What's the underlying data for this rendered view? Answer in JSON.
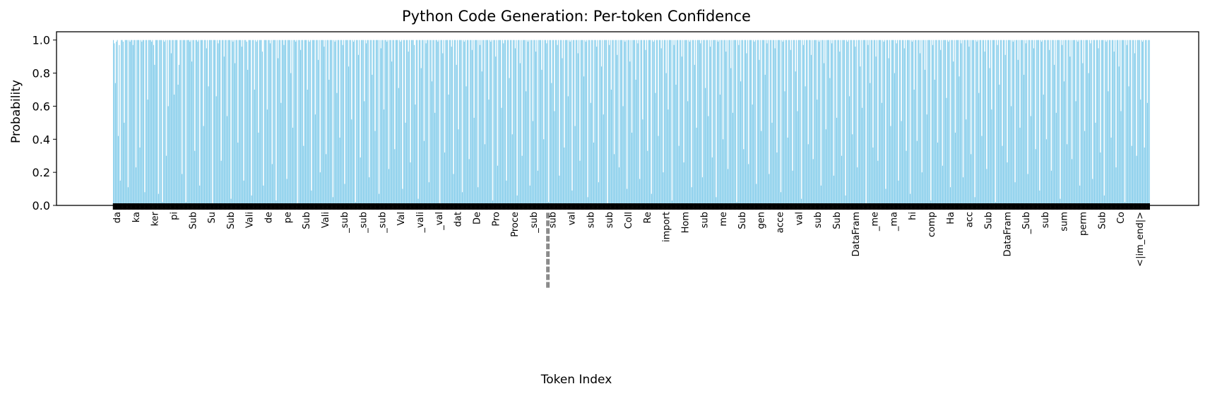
{
  "chart_data": {
    "type": "bar",
    "title": "Python Code Generation: Per-token Confidence",
    "xlabel": "Token Index",
    "ylabel": "Probability",
    "ylim": [
      0,
      1.05
    ],
    "yticks": [
      "0.0",
      "0.2",
      "0.4",
      "0.6",
      "0.8",
      "1.0"
    ],
    "bar_color": "#87CEEB",
    "grid": false,
    "x_tick_labels_visible": [
      "da",
      "ka",
      "ker",
      "pi",
      "Sub",
      "Su",
      "Sub",
      "Vali",
      "de",
      "pe",
      "Sub",
      "Vali",
      "_sub",
      "_sub",
      "_sub",
      "Val",
      "_vali",
      "_val",
      "dat",
      "De",
      "Pro",
      "Proce",
      "_sub",
      "sub",
      "val",
      "sub",
      "sub",
      "Coll",
      "Re",
      "import",
      "Hom",
      "sub",
      "me",
      "Sub",
      "gen",
      "acce",
      "val",
      "sub",
      "Sub",
      "DataFram",
      "_me",
      "_ma",
      "hi",
      "comp",
      "Ha",
      "acc",
      "Sub",
      "DataFram",
      "_Sub",
      "sub",
      "sum",
      "perm",
      "Sub",
      "Co",
      "<|im_end|>",
      "=========="
    ],
    "values": [
      1.0,
      0.98,
      0.74,
      0.99,
      1.0,
      0.42,
      0.97,
      0.15,
      1.0,
      1.0,
      0.99,
      0.5,
      1.0,
      1.0,
      1.0,
      0.11,
      1.0,
      0.99,
      1.0,
      1.0,
      0.97,
      1.0,
      1.0,
      0.23,
      1.0,
      1.0,
      1.0,
      0.35,
      1.0,
      0.99,
      1.0,
      1.0,
      0.08,
      1.0,
      1.0,
      0.64,
      1.0,
      1.0,
      1.0,
      0.99,
      1.0,
      0.97,
      0.85,
      1.0,
      1.0,
      1.0,
      0.07,
      1.0,
      1.0,
      1.0,
      0.02,
      1.0,
      0.99,
      1.0,
      0.3,
      1.0,
      0.6,
      1.0,
      1.0,
      0.92,
      1.0,
      1.0,
      0.67,
      1.0,
      1.0,
      1.0,
      0.73,
      0.85,
      1.0,
      1.0,
      0.19,
      1.0,
      1.0,
      1.0,
      0.02,
      1.0,
      1.0,
      1.0,
      0.99,
      1.0,
      0.87,
      1.0,
      1.0,
      0.33,
      1.0,
      1.0,
      0.99,
      1.0,
      0.12,
      1.0,
      1.0,
      1.0,
      0.48,
      1.0,
      1.0,
      0.95,
      1.0,
      0.72,
      1.0,
      1.0,
      1.0,
      0.01,
      1.0,
      1.0,
      1.0,
      0.66,
      1.0,
      0.98,
      1.0,
      1.0,
      0.27,
      1.0,
      1.0,
      0.9,
      1.0,
      1.0,
      0.54,
      1.0,
      1.0,
      1.0,
      0.04,
      1.0,
      0.99,
      1.0,
      0.86,
      1.0,
      1.0,
      0.38,
      1.0,
      1.0,
      1.0,
      0.96,
      1.0,
      0.15,
      1.0,
      1.0,
      0.99,
      0.82,
      1.0,
      1.0,
      1.0,
      0.06,
      1.0,
      1.0,
      0.7,
      1.0,
      0.99,
      1.0,
      0.44,
      1.0,
      1.0,
      1.0,
      0.93,
      0.12,
      1.0,
      1.0,
      1.0,
      0.58,
      1.0,
      1.0,
      0.98,
      1.0,
      0.25,
      1.0,
      1.0,
      1.0,
      0.03,
      1.0,
      0.89,
      1.0,
      1.0,
      0.62,
      1.0,
      1.0,
      0.97,
      1.0,
      1.0,
      0.16,
      1.0,
      1.0,
      1.0,
      0.8,
      1.0,
      0.47,
      1.0,
      1.0,
      0.99,
      1.0,
      0.01,
      1.0,
      1.0,
      0.94,
      1.0,
      1.0,
      0.36,
      1.0,
      1.0,
      1.0,
      0.7,
      1.0,
      0.99,
      1.0,
      0.09,
      1.0,
      1.0,
      1.0,
      0.55,
      1.0,
      1.0,
      0.88,
      1.0,
      0.2,
      1.0,
      1.0,
      1.0,
      0.96,
      1.0,
      0.31,
      1.0,
      1.0,
      0.76,
      1.0,
      1.0,
      1.0,
      0.05,
      1.0,
      0.99,
      1.0,
      0.68,
      1.0,
      1.0,
      0.41,
      1.0,
      1.0,
      0.97,
      1.0,
      0.13,
      1.0,
      1.0,
      1.0,
      0.84,
      1.0,
      1.0,
      0.52,
      1.0,
      0.99,
      1.0,
      0.02,
      1.0,
      1.0,
      0.91,
      1.0,
      0.29,
      1.0,
      1.0,
      1.0,
      0.63,
      1.0,
      0.98,
      1.0,
      1.0,
      0.17,
      1.0,
      1.0,
      0.79,
      1.0,
      1.0,
      0.45,
      1.0,
      1.0,
      1.0,
      0.07,
      1.0,
      0.95,
      1.0,
      1.0,
      0.58,
      1.0,
      1.0,
      0.99,
      1.0,
      0.22,
      1.0,
      1.0,
      0.87,
      1.0,
      1.0,
      0.34,
      1.0,
      1.0,
      1.0,
      0.71,
      1.0,
      0.99,
      1.0,
      0.1,
      1.0,
      1.0,
      0.5,
      1.0,
      1.0,
      0.93,
      1.0,
      0.26,
      1.0,
      1.0,
      1.0,
      0.97,
      0.61,
      1.0,
      1.0,
      0.04,
      1.0,
      1.0,
      0.83,
      1.0,
      1.0,
      0.39,
      1.0,
      0.98,
      1.0,
      1.0,
      0.14,
      1.0,
      1.0,
      0.75,
      1.0,
      1.0,
      0.56,
      1.0,
      1.0,
      0.99,
      1.0,
      0.01,
      1.0,
      1.0,
      0.92,
      1.0,
      0.32,
      1.0,
      1.0,
      1.0,
      0.67,
      1.0,
      1.0,
      0.96,
      1.0,
      0.19,
      1.0,
      1.0,
      0.85,
      1.0,
      0.46,
      1.0,
      1.0,
      1.0,
      0.08,
      1.0,
      0.99,
      1.0,
      0.72,
      1.0,
      1.0,
      0.28,
      1.0,
      1.0,
      0.94,
      1.0,
      0.53,
      1.0,
      1.0,
      1.0,
      0.11,
      1.0,
      0.97,
      1.0,
      0.81,
      1.0,
      1.0,
      0.37,
      1.0,
      1.0,
      1.0,
      0.64,
      1.0,
      0.99,
      1.0,
      0.03,
      1.0,
      1.0,
      0.9,
      1.0,
      0.24,
      1.0,
      1.0,
      1.0,
      0.59,
      1.0,
      0.98,
      1.0,
      1.0,
      0.15,
      1.0,
      1.0,
      0.77,
      1.0,
      1.0,
      0.43,
      1.0,
      1.0,
      0.95,
      1.0,
      0.06,
      1.0,
      1.0,
      0.86,
      1.0,
      0.3,
      1.0,
      1.0,
      1.0,
      0.69,
      1.0,
      0.99,
      1.0,
      0.12,
      1.0,
      1.0,
      0.51,
      1.0,
      1.0,
      0.93,
      1.0,
      0.21,
      1.0,
      1.0,
      1.0,
      0.82,
      1.0,
      0.4,
      1.0,
      1.0,
      0.98,
      1.0,
      0.02,
      1.0,
      1.0,
      0.74,
      1.0,
      1.0,
      0.57,
      1.0,
      1.0,
      0.97,
      1.0,
      0.18,
      1.0,
      1.0,
      0.89,
      1.0,
      0.35,
      1.0,
      1.0,
      1.0,
      0.66,
      1.0,
      0.99,
      1.0,
      0.09,
      1.0,
      1.0,
      0.48,
      1.0,
      1.0,
      0.92,
      1.0,
      0.27,
      1.0,
      1.0,
      1.0,
      0.78,
      1.0,
      0.99,
      1.0,
      0.05,
      1.0,
      1.0,
      0.62,
      1.0,
      1.0,
      0.38,
      1.0,
      1.0,
      0.96,
      1.0,
      0.14,
      1.0,
      1.0,
      0.84,
      1.0,
      0.55,
      1.0,
      1.0,
      1.0,
      0.01,
      1.0,
      0.97,
      1.0,
      0.7,
      1.0,
      1.0,
      0.31,
      1.0,
      1.0,
      0.91,
      1.0,
      0.23,
      1.0,
      1.0,
      1.0,
      0.6,
      1.0,
      0.99,
      1.0,
      0.1,
      1.0,
      1.0,
      0.87,
      1.0,
      0.44,
      1.0,
      1.0,
      1.0,
      0.76,
      1.0,
      0.98,
      1.0,
      0.16,
      1.0,
      1.0,
      0.52,
      1.0,
      1.0,
      0.94,
      1.0,
      0.33,
      1.0,
      1.0,
      1.0,
      0.07,
      1.0,
      0.99,
      1.0,
      0.68,
      1.0,
      1.0,
      0.42,
      1.0,
      1.0,
      0.95,
      1.0,
      0.2,
      1.0,
      1.0,
      0.8,
      1.0,
      0.58,
      1.0,
      1.0,
      1.0,
      0.03,
      1.0,
      0.97,
      1.0,
      0.73,
      1.0,
      1.0,
      0.36,
      1.0,
      1.0,
      0.9,
      1.0,
      0.26,
      1.0,
      1.0,
      1.0,
      0.63,
      1.0,
      0.99,
      1.0,
      0.11,
      1.0,
      1.0,
      0.85,
      1.0,
      0.47,
      1.0,
      1.0,
      1.0,
      0.98,
      1.0,
      0.17,
      1.0,
      1.0,
      0.71,
      1.0,
      1.0,
      0.54,
      1.0,
      0.96,
      1.0,
      0.29,
      1.0,
      1.0,
      1.0,
      0.05,
      1.0,
      0.99,
      1.0,
      0.67,
      1.0,
      1.0,
      0.4,
      1.0,
      1.0,
      0.93,
      1.0,
      0.22,
      1.0,
      1.0,
      0.83,
      1.0,
      0.56,
      1.0,
      1.0,
      1.0,
      0.02,
      1.0,
      0.97,
      1.0,
      0.75,
      1.0,
      1.0,
      0.34,
      1.0,
      1.0,
      0.92,
      1.0,
      0.25,
      1.0,
      1.0,
      1.0,
      0.61,
      1.0,
      0.99,
      1.0,
      0.13,
      1.0,
      1.0,
      0.88,
      1.0,
      0.45,
      1.0,
      1.0,
      1.0,
      0.79,
      1.0,
      0.98,
      1.0,
      0.19,
      1.0,
      1.0,
      0.5,
      1.0,
      1.0,
      0.95,
      1.0,
      0.32,
      1.0,
      1.0,
      1.0,
      0.08,
      1.0,
      0.99,
      1.0,
      0.69,
      1.0,
      1.0,
      0.41,
      1.0,
      1.0,
      0.94,
      1.0,
      0.21,
      1.0,
      1.0,
      0.81,
      1.0,
      0.57,
      1.0,
      1.0,
      1.0,
      0.04,
      1.0,
      0.97,
      1.0,
      0.72,
      1.0,
      1.0,
      0.37,
      1.0,
      1.0,
      0.91,
      1.0,
      0.28,
      1.0,
      1.0,
      1.0,
      0.64,
      1.0,
      0.99,
      1.0,
      0.12,
      1.0,
      1.0,
      0.86,
      1.0,
      0.46,
      1.0,
      1.0,
      1.0,
      0.77,
      1.0,
      0.98,
      1.0,
      0.18,
      1.0,
      1.0,
      0.53,
      1.0,
      1.0,
      0.93,
      1.0,
      0.3,
      1.0,
      1.0,
      1.0,
      0.06,
      1.0,
      0.99,
      1.0,
      0.66,
      1.0,
      1.0,
      0.43,
      1.0,
      1.0,
      0.96,
      1.0,
      0.23,
      1.0,
      1.0,
      0.84,
      1.0,
      0.59,
      1.0,
      1.0,
      1.0,
      0.01,
      1.0,
      0.97,
      1.0,
      0.74,
      1.0,
      1.0,
      0.35,
      1.0,
      1.0,
      0.9,
      1.0,
      0.27,
      1.0,
      1.0,
      1.0,
      0.62,
      1.0,
      0.99,
      1.0,
      0.1,
      1.0,
      1.0,
      0.89,
      1.0,
      0.48,
      1.0,
      1.0,
      1.0,
      0.8,
      1.0,
      0.98,
      1.0,
      0.15,
      1.0,
      1.0,
      0.51,
      1.0,
      1.0,
      0.95,
      1.0,
      0.33,
      1.0,
      1.0,
      1.0,
      0.07,
      1.0,
      0.99,
      1.0,
      0.7,
      1.0,
      1.0,
      0.39,
      1.0,
      1.0,
      0.92,
      1.0,
      0.2,
      1.0,
      1.0,
      0.82,
      1.0,
      0.55,
      1.0,
      1.0,
      1.0,
      0.03,
      1.0,
      0.97,
      1.0,
      0.76,
      1.0,
      1.0,
      0.38,
      1.0,
      1.0,
      0.94,
      1.0,
      0.24,
      1.0,
      1.0,
      1.0,
      0.65,
      1.0,
      0.99,
      1.0,
      0.11,
      1.0,
      1.0,
      0.87,
      1.0,
      0.44,
      1.0,
      1.0,
      1.0,
      0.78,
      1.0,
      0.98,
      1.0,
      0.17,
      1.0,
      1.0,
      0.52,
      1.0,
      1.0,
      0.96,
      1.0,
      0.31,
      1.0,
      1.0,
      1.0,
      0.05,
      1.0,
      0.99,
      1.0,
      0.68,
      1.0,
      1.0,
      0.42,
      1.0,
      1.0,
      0.93,
      1.0,
      0.22,
      1.0,
      1.0,
      0.83,
      1.0,
      0.58,
      1.0,
      1.0,
      1.0,
      0.02,
      1.0,
      0.97,
      1.0,
      0.73,
      1.0,
      1.0,
      0.36,
      1.0,
      1.0,
      0.91,
      1.0,
      0.26,
      1.0,
      1.0,
      1.0,
      0.6,
      1.0,
      0.99,
      1.0,
      0.14,
      1.0,
      1.0,
      0.88,
      1.0,
      0.47,
      1.0,
      1.0,
      1.0,
      0.79,
      1.0,
      0.98,
      1.0,
      0.19,
      1.0,
      1.0,
      0.54,
      1.0,
      1.0,
      0.95,
      1.0,
      0.34,
      1.0,
      1.0,
      1.0,
      0.09,
      1.0,
      0.99,
      1.0,
      0.67,
      1.0,
      1.0,
      0.4,
      1.0,
      1.0,
      0.94,
      1.0,
      0.21,
      1.0,
      1.0,
      0.85,
      1.0,
      0.56,
      1.0,
      1.0,
      1.0,
      0.04,
      1.0,
      0.97,
      1.0,
      0.75,
      1.0,
      1.0,
      0.37,
      1.0,
      1.0,
      0.9,
      1.0,
      0.28,
      1.0,
      1.0,
      1.0,
      0.63,
      1.0,
      0.99,
      1.0,
      0.12,
      1.0,
      1.0,
      0.86,
      1.0,
      0.45,
      1.0,
      1.0,
      1.0,
      0.8,
      1.0,
      0.98,
      1.0,
      0.16,
      1.0,
      1.0,
      0.5,
      1.0,
      1.0,
      0.95,
      1.0,
      0.32,
      1.0,
      1.0,
      1.0,
      0.06,
      1.0,
      0.99,
      1.0,
      0.69,
      1.0,
      1.0,
      0.41,
      1.0,
      1.0,
      0.93,
      1.0,
      0.23,
      1.0,
      1.0,
      0.84,
      1.0,
      0.57,
      1.0,
      1.0,
      1.0,
      0.02,
      1.0,
      0.97,
      1.0,
      0.72,
      1.0,
      1.0,
      0.36,
      1.0,
      1.0,
      0.92,
      1.0,
      0.3,
      1.0,
      1.0,
      1.0,
      0.64,
      1.0,
      0.99,
      1.0,
      0.35,
      1.0,
      1.0,
      0.62,
      1.0,
      1.0
    ]
  }
}
